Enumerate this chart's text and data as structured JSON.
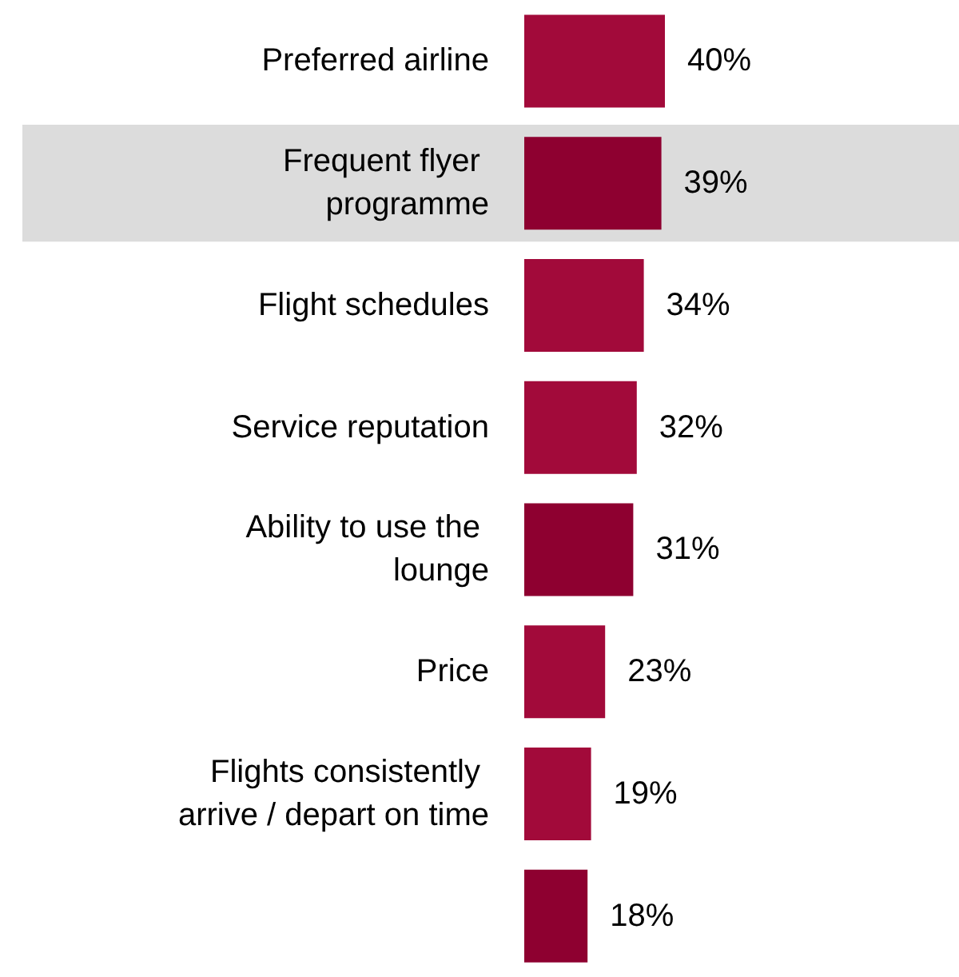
{
  "chart_data": {
    "type": "bar",
    "orientation": "horizontal",
    "categories": [
      "Preferred airline",
      "Frequent flyer programme",
      "Flight schedules",
      "Service reputation",
      "Ability to use the lounge",
      "Price",
      "Flights consistently arrive / depart on time",
      null
    ],
    "values": [
      40,
      39,
      34,
      32,
      31,
      23,
      19,
      18
    ],
    "colors": [
      "#a20a3a",
      "#8e0030",
      "#a20a3a",
      "#a20a3a",
      "#8e0030",
      "#a20a3a",
      "#a20a3a",
      "#8e0030"
    ],
    "value_labels": [
      "40%",
      "39%",
      "34%",
      "32%",
      "31%",
      "23%",
      "19%",
      "18%"
    ],
    "bands": [
      {
        "axis": "y",
        "from": "Frequent flyer programme",
        "to": "Frequent flyer programme",
        "color": "#dcdcdc"
      }
    ]
  }
}
